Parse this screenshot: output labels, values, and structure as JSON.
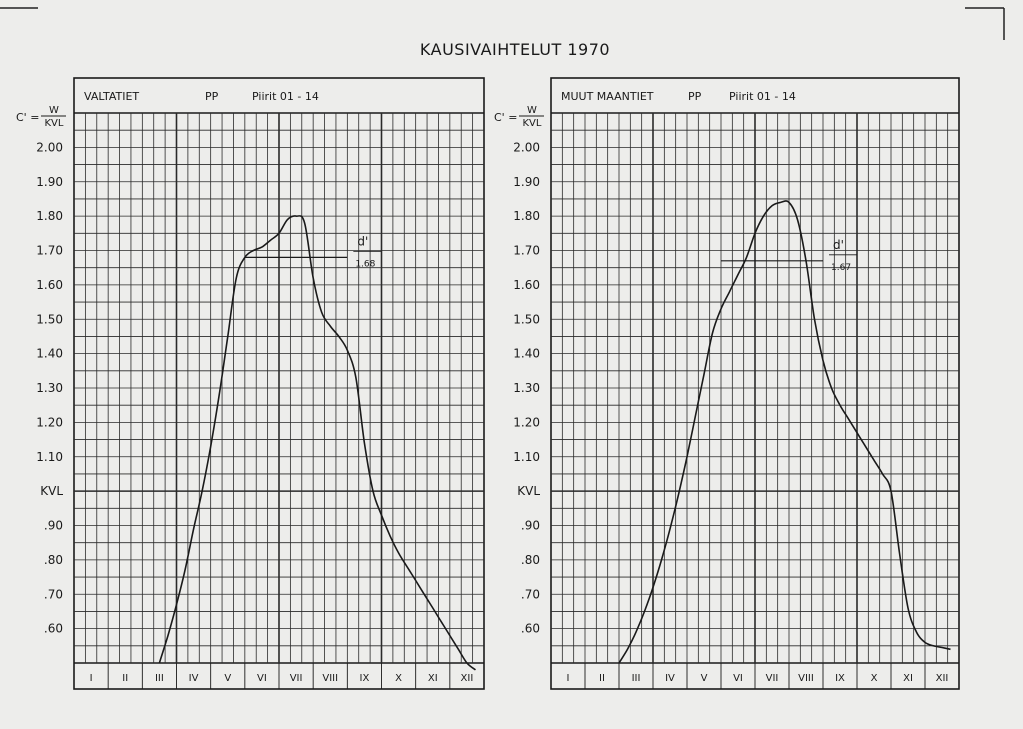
{
  "title": "KAUSIVAIHTELUT  1970",
  "y_axis_label": {
    "top": "W",
    "bottom": "KVL",
    "prefix": "C' ="
  },
  "months": [
    "I",
    "II",
    "III",
    "IV",
    "V",
    "VI",
    "VII",
    "VIII",
    "IX",
    "X",
    "XI",
    "XII"
  ],
  "colors": {
    "paper": "#ededeb",
    "ink": "#1a1a1a",
    "grid": "#2a2a2a"
  },
  "chart_data": [
    {
      "type": "line",
      "header": {
        "name": "VALTATIET",
        "code": "PP",
        "districts": "Piirit 01 - 14"
      },
      "y_ticks": [
        "2.00",
        "1.90",
        "1.80",
        "1.70",
        "1.60",
        "1.50",
        "1.40",
        "1.30",
        "1.20",
        "1.10",
        "KVL",
        ".90",
        ".80",
        ".70",
        ".60"
      ],
      "ylim": [
        0.5,
        2.1
      ],
      "xlim": [
        0,
        12
      ],
      "x": [
        2.5,
        2.75,
        3.0,
        3.25,
        3.5,
        3.75,
        4.0,
        4.25,
        4.5,
        4.75,
        5.0,
        5.25,
        5.5,
        5.75,
        6.0,
        6.25,
        6.5,
        6.75,
        7.0,
        7.25,
        7.5,
        7.75,
        8.0,
        8.25,
        8.5,
        8.75,
        9.0,
        9.25,
        9.5,
        9.75,
        10.0,
        10.25,
        10.5,
        10.75,
        11.0,
        11.25,
        11.5,
        11.75
      ],
      "y": [
        0.5,
        0.58,
        0.67,
        0.77,
        0.89,
        1.0,
        1.13,
        1.28,
        1.45,
        1.62,
        1.68,
        1.7,
        1.71,
        1.73,
        1.75,
        1.79,
        1.8,
        1.78,
        1.62,
        1.52,
        1.48,
        1.45,
        1.41,
        1.33,
        1.14,
        1.0,
        0.93,
        0.87,
        0.82,
        0.78,
        0.74,
        0.7,
        0.66,
        0.62,
        0.58,
        0.54,
        0.5,
        0.48
      ],
      "mean_line": {
        "value": 1.68,
        "label_top": "d'",
        "label": "1.68",
        "x_start": 5.0,
        "x_end": 8.0
      }
    },
    {
      "type": "line",
      "header": {
        "name": "MUUT MAANTIET",
        "code": "PP",
        "districts": "Piirit 01 - 14"
      },
      "y_ticks": [
        "2.00",
        "1.90",
        "1.80",
        "1.70",
        "1.60",
        "1.50",
        "1.40",
        "1.30",
        "1.20",
        "1.10",
        "KVL",
        ".90",
        ".80",
        ".70",
        ".60"
      ],
      "ylim": [
        0.5,
        2.1
      ],
      "xlim": [
        0,
        12
      ],
      "x": [
        2.0,
        2.25,
        2.5,
        2.75,
        3.0,
        3.25,
        3.5,
        3.75,
        4.0,
        4.25,
        4.5,
        4.75,
        5.0,
        5.25,
        5.5,
        5.75,
        6.0,
        6.25,
        6.5,
        6.75,
        7.0,
        7.25,
        7.5,
        7.75,
        8.0,
        8.25,
        8.5,
        8.75,
        9.0,
        9.25,
        9.5,
        9.75,
        10.0,
        10.25,
        10.5,
        10.75,
        11.0,
        11.25,
        11.5,
        11.75
      ],
      "y": [
        0.5,
        0.54,
        0.59,
        0.65,
        0.72,
        0.8,
        0.89,
        0.99,
        1.1,
        1.22,
        1.34,
        1.46,
        1.53,
        1.58,
        1.63,
        1.68,
        1.75,
        1.8,
        1.83,
        1.84,
        1.84,
        1.79,
        1.67,
        1.5,
        1.38,
        1.3,
        1.25,
        1.21,
        1.17,
        1.13,
        1.09,
        1.05,
        1.0,
        0.82,
        0.66,
        0.59,
        0.56,
        0.55,
        0.545,
        0.54
      ],
      "mean_line": {
        "value": 1.67,
        "label_top": "d'",
        "label": "1.67",
        "x_start": 5.0,
        "x_end": 8.0
      }
    }
  ]
}
